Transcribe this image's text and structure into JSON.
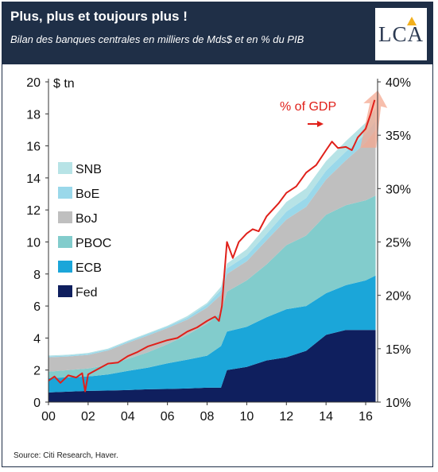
{
  "header": {
    "title": "Plus, plus et toujours plus !",
    "subtitle": "Bilan des banques centrales en milliers de Mds$ et en % du PIB",
    "logo_text": "LCA"
  },
  "footer": {
    "source": "Source: Citi Research, Haver."
  },
  "colors": {
    "header_bg": "#1f2f47",
    "Fed": "#0f1f5e",
    "ECB": "#1ba6d9",
    "PBOC": "#82cccc",
    "BoJ": "#bfbfbf",
    "BoE": "#9ad8ea",
    "SNB": "#b7e3e6",
    "gdp_line": "#e0201a",
    "gdp_arrow": "#f4a890"
  },
  "chart_data": {
    "type": "area",
    "stacked": true,
    "xlabel": "",
    "ylabel": "$ tn",
    "y2label": "",
    "x_ticks": [
      "00",
      "02",
      "04",
      "06",
      "08",
      "10",
      "12",
      "14",
      "16"
    ],
    "y_ticks": [
      "0",
      "2",
      "4",
      "6",
      "8",
      "10",
      "12",
      "14",
      "16",
      "18",
      "20"
    ],
    "y2_ticks": [
      "10%",
      "15%",
      "20%",
      "25%",
      "30%",
      "35%",
      "40%"
    ],
    "xlim": [
      2000,
      2016.6
    ],
    "ylim": [
      0,
      20
    ],
    "y2lim": [
      10,
      40
    ],
    "legend": [
      "SNB",
      "BoE",
      "BoJ",
      "PBOC",
      "ECB",
      "Fed"
    ],
    "legend_position": "left",
    "grid": false,
    "x": [
      2000,
      2001,
      2002,
      2003,
      2004,
      2005,
      2006,
      2007,
      2008,
      2008.7,
      2009,
      2010,
      2011,
      2012,
      2013,
      2014,
      2015,
      2016,
      2016.5
    ],
    "series": [
      {
        "name": "Fed",
        "values": [
          0.6,
          0.65,
          0.7,
          0.72,
          0.75,
          0.8,
          0.82,
          0.85,
          0.9,
          0.9,
          2.0,
          2.2,
          2.6,
          2.8,
          3.2,
          4.2,
          4.5,
          4.5,
          4.5
        ]
      },
      {
        "name": "ECB",
        "values": [
          0.9,
          0.9,
          0.9,
          1.0,
          1.2,
          1.35,
          1.6,
          1.8,
          2.0,
          2.6,
          2.4,
          2.5,
          2.7,
          3.0,
          2.8,
          2.6,
          2.8,
          3.1,
          3.4
        ]
      },
      {
        "name": "PBOC",
        "values": [
          0.4,
          0.45,
          0.5,
          0.6,
          0.75,
          0.95,
          1.2,
          1.55,
          2.0,
          2.1,
          2.5,
          2.9,
          3.3,
          4.0,
          4.4,
          4.9,
          5.0,
          5.0,
          5.0
        ]
      },
      {
        "name": "BoJ",
        "values": [
          0.9,
          0.85,
          0.85,
          0.9,
          1.0,
          1.05,
          1.0,
          0.95,
          1.0,
          1.1,
          1.1,
          1.2,
          1.5,
          1.6,
          1.8,
          2.2,
          2.8,
          3.6,
          4.1
        ]
      },
      {
        "name": "BoE",
        "values": [
          0.06,
          0.06,
          0.07,
          0.07,
          0.08,
          0.1,
          0.1,
          0.12,
          0.2,
          0.3,
          0.35,
          0.35,
          0.4,
          0.5,
          0.55,
          0.55,
          0.55,
          0.55,
          0.55
        ]
      },
      {
        "name": "SNB",
        "values": [
          0.05,
          0.05,
          0.05,
          0.05,
          0.05,
          0.05,
          0.05,
          0.1,
          0.1,
          0.2,
          0.3,
          0.4,
          0.5,
          0.6,
          0.6,
          0.6,
          0.65,
          0.7,
          0.8
        ]
      }
    ],
    "gdp_pct": {
      "name": "% of GDP",
      "x": [
        2000,
        2000.3,
        2000.6,
        2001,
        2001.4,
        2001.7,
        2001.85,
        2002,
        2002.5,
        2003,
        2003.5,
        2004,
        2004.5,
        2005,
        2005.5,
        2006,
        2006.5,
        2007,
        2007.5,
        2008,
        2008.4,
        2008.6,
        2008.75,
        2008.85,
        2009,
        2009.3,
        2009.6,
        2010,
        2010.3,
        2010.6,
        2011,
        2011.3,
        2011.6,
        2012,
        2012.5,
        2013,
        2013.5,
        2014,
        2014.3,
        2014.6,
        2015,
        2015.3,
        2015.6,
        2016,
        2016.25,
        2016.45
      ],
      "values": [
        12.0,
        12.4,
        11.8,
        12.5,
        12.3,
        12.7,
        11.0,
        12.6,
        13.1,
        13.6,
        13.7,
        14.3,
        14.7,
        15.2,
        15.5,
        15.8,
        16.0,
        16.6,
        17.0,
        17.6,
        18.0,
        17.6,
        19.0,
        21.5,
        25.0,
        23.5,
        25.0,
        25.8,
        26.2,
        26.0,
        27.4,
        28.0,
        28.6,
        29.6,
        30.2,
        31.5,
        32.2,
        33.6,
        34.4,
        33.8,
        33.9,
        33.6,
        34.8,
        35.6,
        37.0,
        38.3
      ]
    }
  }
}
